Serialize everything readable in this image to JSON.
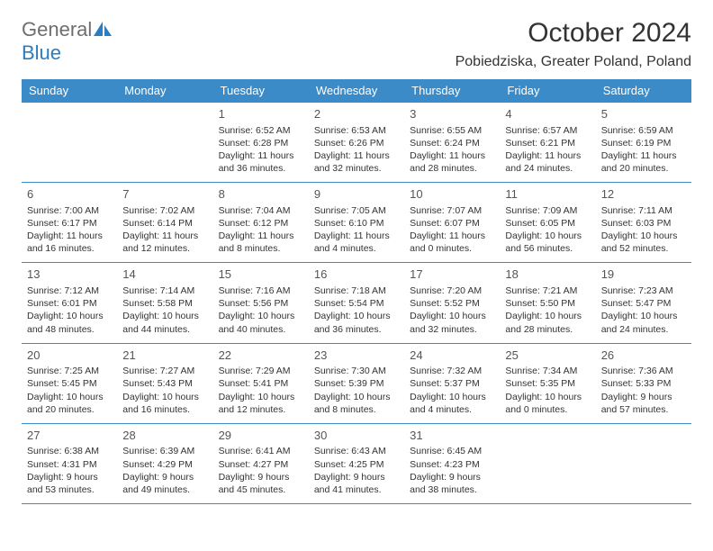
{
  "logo": {
    "part1": "General",
    "part2": "Blue"
  },
  "title": "October 2024",
  "location": "Pobiedziska, Greater Poland, Poland",
  "colors": {
    "header_bg": "#3b8bc9",
    "header_text": "#ffffff",
    "border": "#3b8bc9",
    "text": "#333333",
    "logo_gray": "#6d6e71",
    "logo_blue": "#2b7cc0"
  },
  "weekdays": [
    "Sunday",
    "Monday",
    "Tuesday",
    "Wednesday",
    "Thursday",
    "Friday",
    "Saturday"
  ],
  "weeks": [
    [
      null,
      null,
      {
        "d": "1",
        "sr": "6:52 AM",
        "ss": "6:28 PM",
        "dl": "11 hours and 36 minutes."
      },
      {
        "d": "2",
        "sr": "6:53 AM",
        "ss": "6:26 PM",
        "dl": "11 hours and 32 minutes."
      },
      {
        "d": "3",
        "sr": "6:55 AM",
        "ss": "6:24 PM",
        "dl": "11 hours and 28 minutes."
      },
      {
        "d": "4",
        "sr": "6:57 AM",
        "ss": "6:21 PM",
        "dl": "11 hours and 24 minutes."
      },
      {
        "d": "5",
        "sr": "6:59 AM",
        "ss": "6:19 PM",
        "dl": "11 hours and 20 minutes."
      }
    ],
    [
      {
        "d": "6",
        "sr": "7:00 AM",
        "ss": "6:17 PM",
        "dl": "11 hours and 16 minutes."
      },
      {
        "d": "7",
        "sr": "7:02 AM",
        "ss": "6:14 PM",
        "dl": "11 hours and 12 minutes."
      },
      {
        "d": "8",
        "sr": "7:04 AM",
        "ss": "6:12 PM",
        "dl": "11 hours and 8 minutes."
      },
      {
        "d": "9",
        "sr": "7:05 AM",
        "ss": "6:10 PM",
        "dl": "11 hours and 4 minutes."
      },
      {
        "d": "10",
        "sr": "7:07 AM",
        "ss": "6:07 PM",
        "dl": "11 hours and 0 minutes."
      },
      {
        "d": "11",
        "sr": "7:09 AM",
        "ss": "6:05 PM",
        "dl": "10 hours and 56 minutes."
      },
      {
        "d": "12",
        "sr": "7:11 AM",
        "ss": "6:03 PM",
        "dl": "10 hours and 52 minutes."
      }
    ],
    [
      {
        "d": "13",
        "sr": "7:12 AM",
        "ss": "6:01 PM",
        "dl": "10 hours and 48 minutes."
      },
      {
        "d": "14",
        "sr": "7:14 AM",
        "ss": "5:58 PM",
        "dl": "10 hours and 44 minutes."
      },
      {
        "d": "15",
        "sr": "7:16 AM",
        "ss": "5:56 PM",
        "dl": "10 hours and 40 minutes."
      },
      {
        "d": "16",
        "sr": "7:18 AM",
        "ss": "5:54 PM",
        "dl": "10 hours and 36 minutes."
      },
      {
        "d": "17",
        "sr": "7:20 AM",
        "ss": "5:52 PM",
        "dl": "10 hours and 32 minutes."
      },
      {
        "d": "18",
        "sr": "7:21 AM",
        "ss": "5:50 PM",
        "dl": "10 hours and 28 minutes."
      },
      {
        "d": "19",
        "sr": "7:23 AM",
        "ss": "5:47 PM",
        "dl": "10 hours and 24 minutes."
      }
    ],
    [
      {
        "d": "20",
        "sr": "7:25 AM",
        "ss": "5:45 PM",
        "dl": "10 hours and 20 minutes."
      },
      {
        "d": "21",
        "sr": "7:27 AM",
        "ss": "5:43 PM",
        "dl": "10 hours and 16 minutes."
      },
      {
        "d": "22",
        "sr": "7:29 AM",
        "ss": "5:41 PM",
        "dl": "10 hours and 12 minutes."
      },
      {
        "d": "23",
        "sr": "7:30 AM",
        "ss": "5:39 PM",
        "dl": "10 hours and 8 minutes."
      },
      {
        "d": "24",
        "sr": "7:32 AM",
        "ss": "5:37 PM",
        "dl": "10 hours and 4 minutes."
      },
      {
        "d": "25",
        "sr": "7:34 AM",
        "ss": "5:35 PM",
        "dl": "10 hours and 0 minutes."
      },
      {
        "d": "26",
        "sr": "7:36 AM",
        "ss": "5:33 PM",
        "dl": "9 hours and 57 minutes."
      }
    ],
    [
      {
        "d": "27",
        "sr": "6:38 AM",
        "ss": "4:31 PM",
        "dl": "9 hours and 53 minutes."
      },
      {
        "d": "28",
        "sr": "6:39 AM",
        "ss": "4:29 PM",
        "dl": "9 hours and 49 minutes."
      },
      {
        "d": "29",
        "sr": "6:41 AM",
        "ss": "4:27 PM",
        "dl": "9 hours and 45 minutes."
      },
      {
        "d": "30",
        "sr": "6:43 AM",
        "ss": "4:25 PM",
        "dl": "9 hours and 41 minutes."
      },
      {
        "d": "31",
        "sr": "6:45 AM",
        "ss": "4:23 PM",
        "dl": "9 hours and 38 minutes."
      },
      null,
      null
    ]
  ],
  "labels": {
    "sunrise": "Sunrise:",
    "sunset": "Sunset:",
    "daylight": "Daylight:"
  }
}
